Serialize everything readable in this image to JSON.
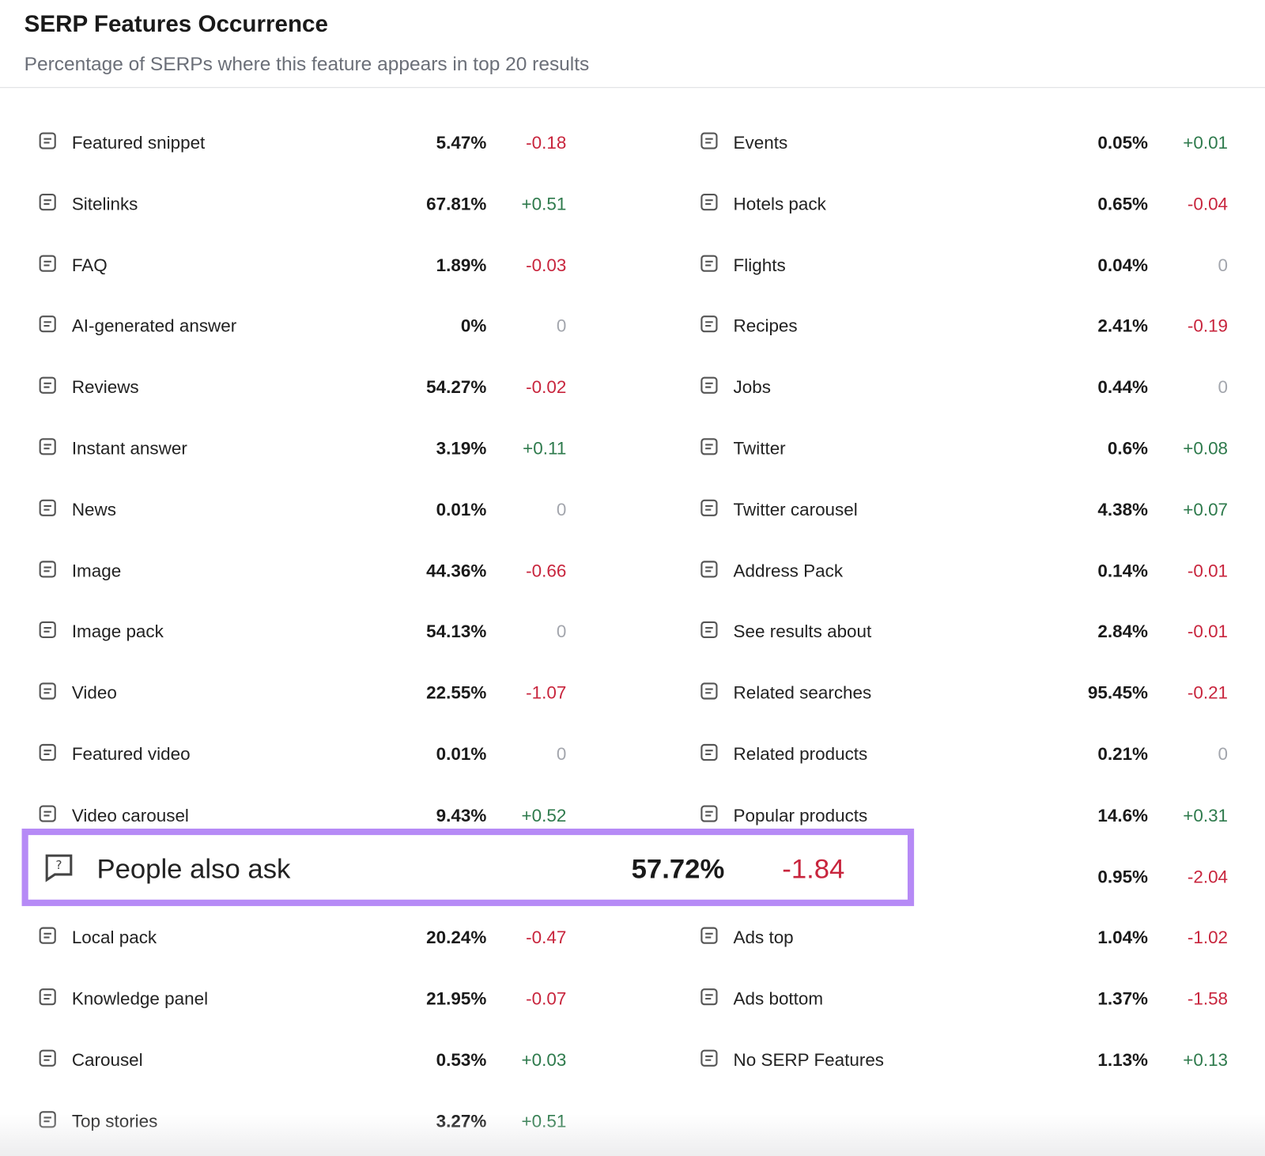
{
  "header": {
    "title": "SERP Features Occurrence",
    "subtitle": "Percentage of SERPs where this feature appears in top 20 results"
  },
  "left": [
    {
      "name": "Featured snippet",
      "share": "5.47%",
      "change": "-0.18"
    },
    {
      "name": "Sitelinks",
      "share": "67.81%",
      "change": "+0.51"
    },
    {
      "name": "FAQ",
      "share": "1.89%",
      "change": "-0.03"
    },
    {
      "name": "AI-generated answer",
      "share": "0%",
      "change": "0"
    },
    {
      "name": "Reviews",
      "share": "54.27%",
      "change": "-0.02"
    },
    {
      "name": "Instant answer",
      "share": "3.19%",
      "change": "+0.11"
    },
    {
      "name": "News",
      "share": "0.01%",
      "change": "0"
    },
    {
      "name": "Image",
      "share": "44.36%",
      "change": "-0.66"
    },
    {
      "name": "Image pack",
      "share": "54.13%",
      "change": "0"
    },
    {
      "name": "Video",
      "share": "22.55%",
      "change": "-1.07"
    },
    {
      "name": "Featured video",
      "share": "0.01%",
      "change": "0"
    },
    {
      "name": "Video carousel",
      "share": "9.43%",
      "change": "+0.52"
    },
    {
      "name": "People also ask",
      "share": "57.72%",
      "change": "-1.84",
      "highlighted": true
    },
    {
      "name": "Local pack",
      "share": "20.24%",
      "change": "-0.47"
    },
    {
      "name": "Knowledge panel",
      "share": "21.95%",
      "change": "-0.07"
    },
    {
      "name": "Carousel",
      "share": "0.53%",
      "change": "+0.03"
    },
    {
      "name": "Top stories",
      "share": "3.27%",
      "change": "+0.51"
    }
  ],
  "right": [
    {
      "name": "Events",
      "share": "0.05%",
      "change": "+0.01"
    },
    {
      "name": "Hotels pack",
      "share": "0.65%",
      "change": "-0.04"
    },
    {
      "name": "Flights",
      "share": "0.04%",
      "change": "0"
    },
    {
      "name": "Recipes",
      "share": "2.41%",
      "change": "-0.19"
    },
    {
      "name": "Jobs",
      "share": "0.44%",
      "change": "0"
    },
    {
      "name": "Twitter",
      "share": "0.6%",
      "change": "+0.08"
    },
    {
      "name": "Twitter carousel",
      "share": "4.38%",
      "change": "+0.07"
    },
    {
      "name": "Address Pack",
      "share": "0.14%",
      "change": "-0.01"
    },
    {
      "name": "See results about",
      "share": "2.84%",
      "change": "-0.01"
    },
    {
      "name": "Related searches",
      "share": "95.45%",
      "change": "-0.21"
    },
    {
      "name": "Related products",
      "share": "0.21%",
      "change": "0"
    },
    {
      "name": "Popular products",
      "share": "14.6%",
      "change": "+0.31"
    },
    {
      "share": "0.95%",
      "change": "-2.04"
    },
    {
      "name": "Ads top",
      "share": "1.04%",
      "change": "-1.02"
    },
    {
      "name": "Ads bottom",
      "share": "1.37%",
      "change": "-1.58"
    },
    {
      "name": "No SERP Features",
      "share": "1.13%",
      "change": "+0.13"
    }
  ]
}
